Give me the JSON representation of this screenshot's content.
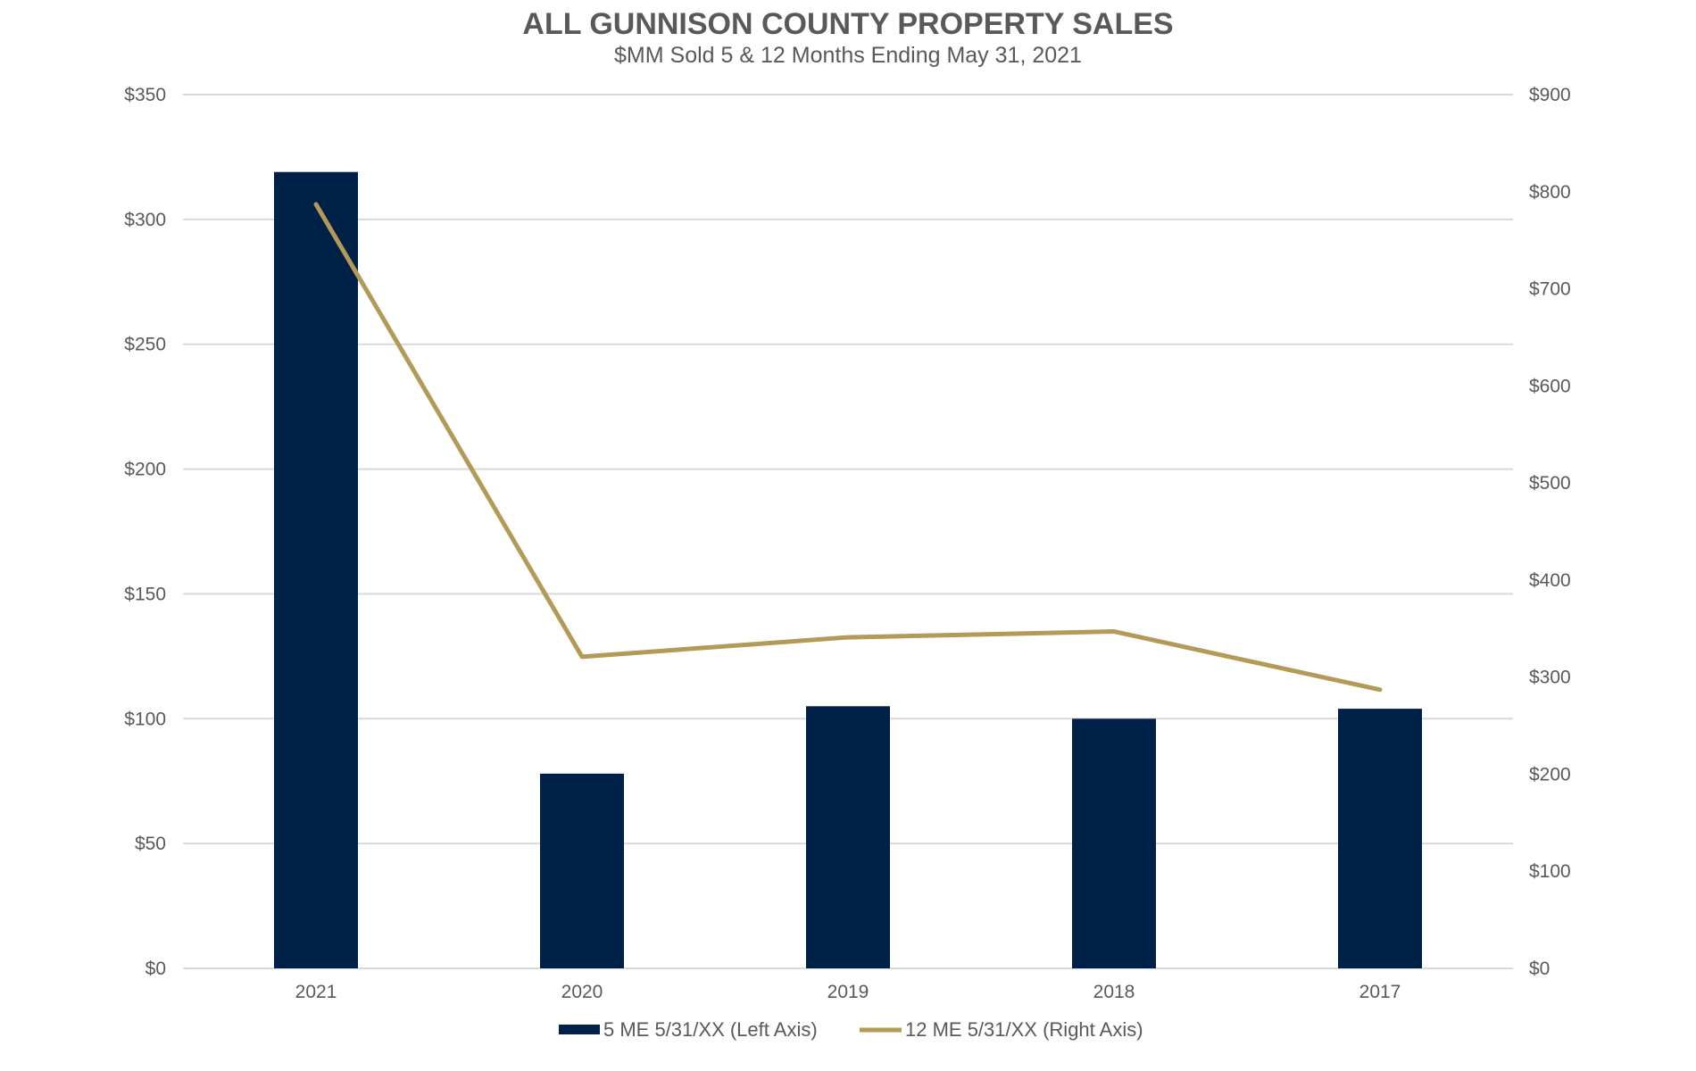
{
  "chart_data": {
    "type": "bar",
    "title": "ALL GUNNISON COUNTY PROPERTY SALES",
    "subtitle": "$MM Sold 5 & 12 Months Ending May 31, 2021",
    "categories": [
      "2021",
      "2020",
      "2019",
      "2018",
      "2017"
    ],
    "series": [
      {
        "name": "5 ME 5/31/XX (Left Axis)",
        "type": "bar",
        "axis": "left",
        "color": "#002147",
        "values": [
          319,
          78,
          105,
          100,
          104
        ]
      },
      {
        "name": "12 ME 5/31/XX (Right Axis)",
        "type": "line",
        "axis": "right",
        "color": "#b49a57",
        "values": [
          787,
          321,
          341,
          347,
          287
        ]
      }
    ],
    "left_axis": {
      "min": 0,
      "max": 350,
      "step": 50,
      "tick_labels": [
        "$0",
        "$50",
        "$100",
        "$150",
        "$200",
        "$250",
        "$300",
        "$350"
      ]
    },
    "right_axis": {
      "min": 0,
      "max": 900,
      "step": 100,
      "tick_labels": [
        "$0",
        "$100",
        "$200",
        "$300",
        "$400",
        "$500",
        "$600",
        "$700",
        "$800",
        "$900"
      ]
    },
    "grid": true,
    "legend_position": "bottom"
  }
}
